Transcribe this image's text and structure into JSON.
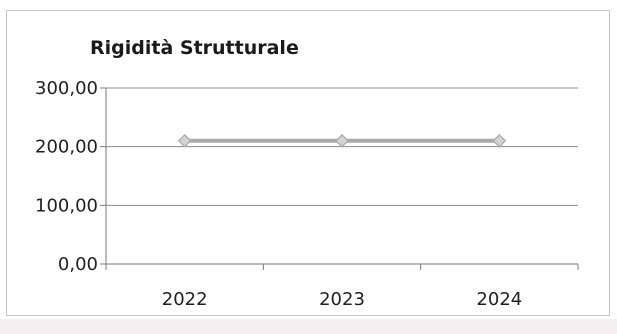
{
  "chart_data": {
    "type": "line",
    "title": "Rigidità Strutturale",
    "xlabel": "",
    "ylabel": "",
    "categories": [
      "2022",
      "2023",
      "2024"
    ],
    "series": [
      {
        "values": [
          210,
          210,
          210
        ]
      }
    ],
    "ylim": [
      0,
      300
    ],
    "yticks": [
      0,
      100,
      200,
      300
    ],
    "ytick_labels": [
      "0,00",
      "100,00",
      "200,00",
      "300,00"
    ],
    "grid": true,
    "legend": "none",
    "colors": {
      "series": "#a9a9a9",
      "marker_fill": "#d3d3d3",
      "grid": "#8c8c8c",
      "axis": "#7a7a7a"
    }
  }
}
